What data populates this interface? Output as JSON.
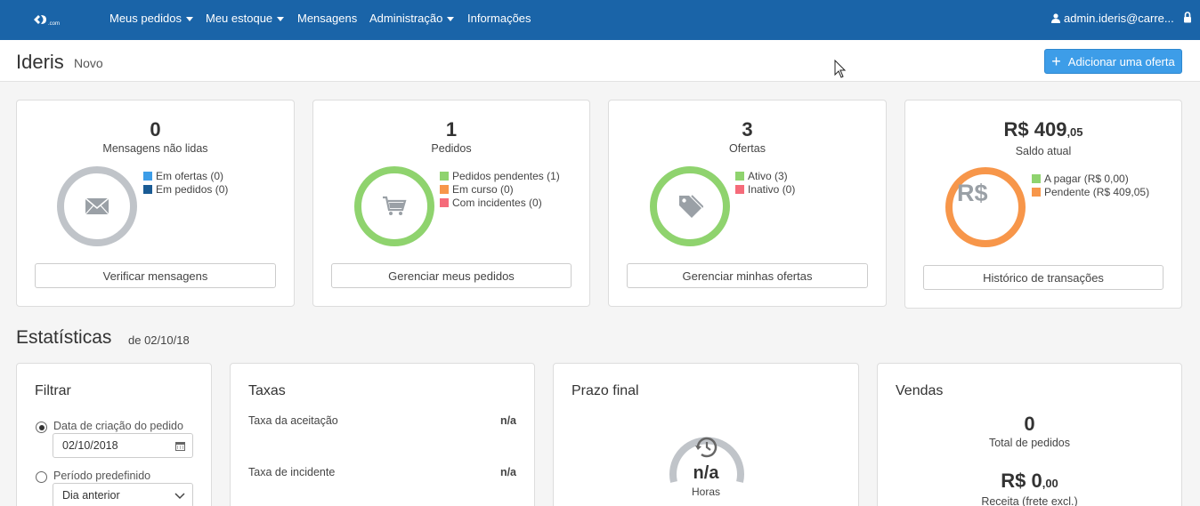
{
  "navbar": {
    "logo_text": ".com",
    "items": [
      {
        "label": "Meus pedidos",
        "dropdown": true
      },
      {
        "label": "Meu estoque",
        "dropdown": true
      },
      {
        "label": "Mensagens",
        "dropdown": false
      },
      {
        "label": "Administração",
        "dropdown": true
      },
      {
        "label": "Informações",
        "dropdown": false
      }
    ],
    "user": "admin.ideris@carre..."
  },
  "header": {
    "title": "Ideris",
    "subtitle": "Novo",
    "add_offer_label": "Adicionar uma oferta"
  },
  "cards": {
    "messages": {
      "count": "0",
      "label": "Mensagens não lidas",
      "legend": [
        {
          "label": "Em ofertas (0)",
          "color": "#3d9de8"
        },
        {
          "label": "Em pedidos (0)",
          "color": "#1a5b94"
        }
      ],
      "button": "Verificar mensagens",
      "icon": "envelope-icon"
    },
    "orders": {
      "count": "1",
      "label": "Pedidos",
      "legend": [
        {
          "label": "Pedidos pendentes (1)",
          "color": "#8fd36e"
        },
        {
          "label": "Em curso (0)",
          "color": "#f7964a"
        },
        {
          "label": "Com incidentes (0)",
          "color": "#f56b7a"
        }
      ],
      "button": "Gerenciar meus pedidos",
      "icon": "cart-icon"
    },
    "offers": {
      "count": "3",
      "label": "Ofertas",
      "legend": [
        {
          "label": "Ativo (3)",
          "color": "#8fd36e"
        },
        {
          "label": "Inativo (0)",
          "color": "#f56b7a"
        }
      ],
      "button": "Gerenciar minhas ofertas",
      "icon": "tag-icon"
    },
    "balance": {
      "amount_main": "R$ 409",
      "amount_cents": ",05",
      "label": "Saldo atual",
      "ring_symbol": "R$",
      "legend": [
        {
          "label": "A pagar (R$ 0,00)",
          "color": "#8fd36e"
        },
        {
          "label": "Pendente (R$ 409,05)",
          "color": "#f7964a"
        }
      ],
      "button": "Histórico de transações"
    }
  },
  "stats": {
    "title": "Estatísticas",
    "date": "de 02/10/18",
    "filter": {
      "title": "Filtrar",
      "option_creation_date": "Data de criação do pedido",
      "date_value": "02/10/2018",
      "option_period": "Período predefinido",
      "period_value": "Dia anterior",
      "selected": "creation_date"
    },
    "taxes": {
      "title": "Taxas",
      "rows": [
        {
          "label": "Taxa da aceitação",
          "value": "n/a"
        },
        {
          "label": "Taxa de incidente",
          "value": "n/a"
        }
      ]
    },
    "deadline": {
      "title": "Prazo final",
      "value": "n/a",
      "unit": "Horas"
    },
    "sales": {
      "title": "Vendas",
      "total_orders": "0",
      "total_orders_label": "Total de pedidos",
      "revenue_main": "R$ 0",
      "revenue_cents": ",00",
      "revenue_label": "Receita (frete excl.)"
    }
  },
  "colors": {
    "navbar_bg": "#1a64a8",
    "primary_button": "#3d9de8",
    "ring_gray": "#c0c4c9",
    "ring_green": "#8fd36e",
    "ring_orange": "#f7964a"
  }
}
